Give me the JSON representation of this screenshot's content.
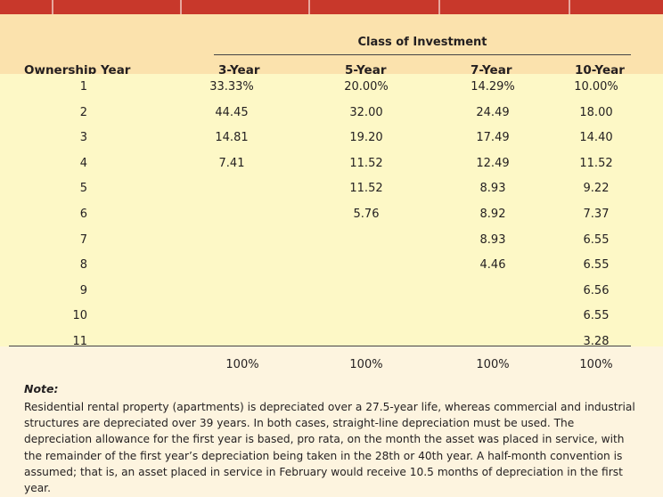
{
  "table": {
    "group_header": "Class of Investment",
    "row_header": "Ownership Year",
    "columns": [
      "3-Year",
      "5-Year",
      "7-Year",
      "10-Year"
    ],
    "rows": [
      {
        "year": "1",
        "values": [
          "33.33%",
          "20.00%",
          "14.29%",
          "10.00%"
        ]
      },
      {
        "year": "2",
        "values": [
          "44.45",
          "32.00",
          "24.49",
          "18.00"
        ]
      },
      {
        "year": "3",
        "values": [
          "14.81",
          "19.20",
          "17.49",
          "14.40"
        ]
      },
      {
        "year": "4",
        "values": [
          "7.41",
          "11.52",
          "12.49",
          "11.52"
        ]
      },
      {
        "year": "5",
        "values": [
          "",
          "11.52",
          "8.93",
          "9.22"
        ]
      },
      {
        "year": "6",
        "values": [
          "",
          "5.76",
          "8.92",
          "7.37"
        ]
      },
      {
        "year": "7",
        "values": [
          "",
          "",
          "8.93",
          "6.55"
        ]
      },
      {
        "year": "8",
        "values": [
          "",
          "",
          "4.46",
          "6.55"
        ]
      },
      {
        "year": "9",
        "values": [
          "",
          "",
          "",
          "6.56"
        ]
      },
      {
        "year": "10",
        "values": [
          "",
          "",
          "",
          "6.55"
        ]
      },
      {
        "year": "11",
        "values": [
          "",
          "",
          "",
          "3.28"
        ]
      }
    ],
    "totals": [
      "100%",
      "100%",
      "100%",
      "100%"
    ]
  },
  "note": {
    "heading": "Note:",
    "text": "Residential rental property (apartments) is depreciated over a 27.5-year life, whereas commercial and industrial structures are depreciated over 39 years. In both cases, straight-line depreciation must be used. The depreciation allowance for the first year is based, pro rata, on the month the asset was placed in service, with the remainder of the first year’s depreciation being taken in the 28th or 40th year. A half-month convention is assumed; that is, an asset placed in service in February would receive 10.5 months of depreciation in the first year."
  },
  "colors": {
    "top_bar": "#c8382b",
    "header_bg": "#fbe2ad",
    "body_bg": "#fdf8c6",
    "page_bg": "#fdf4df"
  }
}
